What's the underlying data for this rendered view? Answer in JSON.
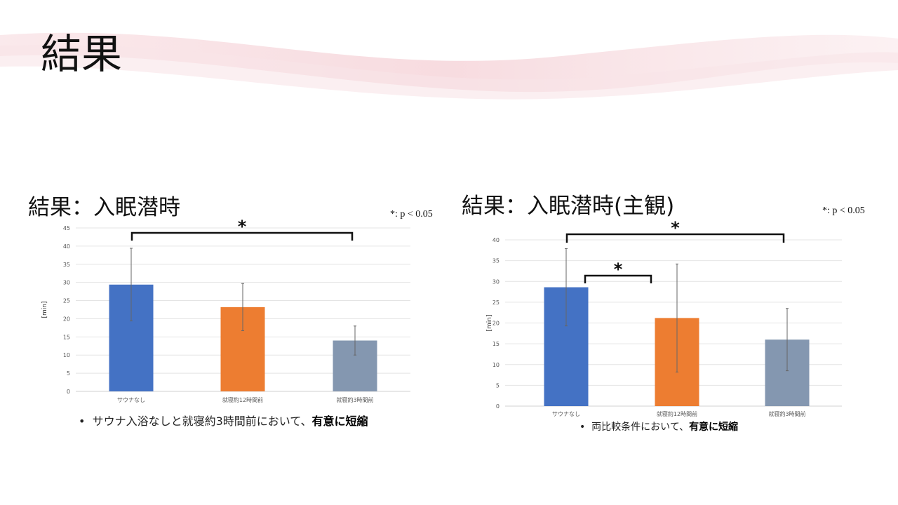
{
  "slide_title": "結果",
  "left": {
    "heading": "結果：入眠潜時",
    "p_note": "*: p < 0.05",
    "bullet_normal": "サウナ入浴なしと就寝約3時間前において、",
    "bullet_bold": "有意に短縮"
  },
  "right": {
    "heading": "結果：入眠潜時(主観)",
    "p_note": "*: p < 0.05",
    "bullet_normal": "両比較条件において、",
    "bullet_bold": "有意に短縮"
  },
  "chart_data": [
    {
      "type": "bar",
      "title": "結果：入眠潜時",
      "ylabel": "[min]",
      "xlabel": "",
      "ylim": [
        0,
        45
      ],
      "yticks": [
        0,
        5,
        10,
        15,
        20,
        25,
        30,
        35,
        40,
        45
      ],
      "grid": true,
      "categories": [
        "サウナなし",
        "就寝約12時間前",
        "就寝約3時間前"
      ],
      "values": [
        29.4,
        23.2,
        14.0
      ],
      "error": [
        10.0,
        6.5,
        4.0
      ],
      "colors": [
        "#4472c4",
        "#ed7d31",
        "#8497b0"
      ],
      "significance": [
        {
          "from": 0,
          "to": 2,
          "label": "*"
        }
      ]
    },
    {
      "type": "bar",
      "title": "結果：入眠潜時(主観)",
      "ylabel": "[min]",
      "xlabel": "",
      "ylim": [
        0,
        40
      ],
      "yticks": [
        0,
        5,
        10,
        15,
        20,
        25,
        30,
        35,
        40
      ],
      "grid": true,
      "categories": [
        "サウナなし",
        "就寝約12時間前",
        "就寝約3時間前"
      ],
      "values": [
        28.6,
        21.2,
        16.0
      ],
      "error": [
        9.3,
        13.0,
        7.5
      ],
      "colors": [
        "#4472c4",
        "#ed7d31",
        "#8497b0"
      ],
      "significance": [
        {
          "from": 0,
          "to": 2,
          "label": "*"
        },
        {
          "from": 0,
          "to": 1,
          "label": "*"
        }
      ]
    }
  ]
}
